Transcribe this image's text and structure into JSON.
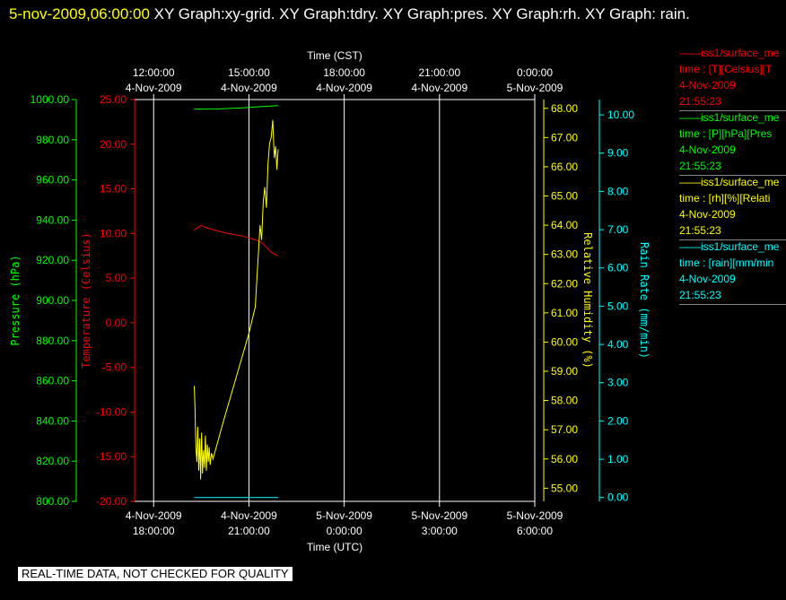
{
  "header": {
    "datetime": "5-nov-2009,06:00:00",
    "titles": "XY Graph:xy-grid.  XY Graph:tdry.  XY Graph:pres.  XY Graph:rh.  XY Graph: rain."
  },
  "footer": {
    "disclaimer": "REAL-TIME DATA, NOT CHECKED FOR QUALITY"
  },
  "colors": {
    "background": "#000000",
    "grid": "#ffffff",
    "pressure": "#00ff00",
    "temperature": "#ff0000",
    "humidity": "#ffff00",
    "rain": "#00ffff"
  },
  "legend": [
    {
      "name": "iss1/surface_me",
      "line2": "time : [T][Celsius][T",
      "date": "4-Nov-2009",
      "time": "21:55:23",
      "color": "#ff0000"
    },
    {
      "name": "iss1/surface_me",
      "line2": "time : [P][hPa][Pres",
      "date": "4-Nov-2009",
      "time": "21:55:23",
      "color": "#00ff00"
    },
    {
      "name": "iss1/surface_me",
      "line2": "time : [rh][%][Relati",
      "date": "4-Nov-2009",
      "time": "21:55:23",
      "color": "#ffff00"
    },
    {
      "name": "iss1/surface_me",
      "line2": "time : [rain][mm/min",
      "date": "4-Nov-2009",
      "time": "21:55:23",
      "color": "#00ffff"
    }
  ],
  "chart_data": {
    "type": "line",
    "grid": true,
    "x_top": {
      "label": "Time (CST)",
      "ticks": [
        {
          "time": "12:00:00",
          "date": "4-Nov-2009",
          "hour_utc": 0
        },
        {
          "time": "15:00:00",
          "date": "4-Nov-2009",
          "hour_utc": 3
        },
        {
          "time": "18:00:00",
          "date": "4-Nov-2009",
          "hour_utc": 6
        },
        {
          "time": "21:00:00",
          "date": "4-Nov-2009",
          "hour_utc": 9
        },
        {
          "time": "0:00:00",
          "date": "5-Nov-2009",
          "hour_utc": 12
        }
      ]
    },
    "x_bottom": {
      "label": "Time (UTC)",
      "ticks": [
        {
          "date": "4-Nov-2009",
          "time": "18:00:00",
          "hour_utc": 0
        },
        {
          "date": "4-Nov-2009",
          "time": "21:00:00",
          "hour_utc": 3
        },
        {
          "date": "5-Nov-2009",
          "time": "0:00:00",
          "hour_utc": 6
        },
        {
          "date": "5-Nov-2009",
          "time": "3:00:00",
          "hour_utc": 9
        },
        {
          "date": "5-Nov-2009",
          "time": "6:00:00",
          "hour_utc": 12
        }
      ],
      "xlim_hours_utc": [
        -0.6,
        12
      ]
    },
    "axes": {
      "pressure": {
        "label": "Pressure (hPa)",
        "ylim": [
          800,
          1000
        ],
        "ticks": [
          "800.00",
          "820.00",
          "840.00",
          "860.00",
          "880.00",
          "900.00",
          "920.00",
          "940.00",
          "960.00",
          "980.00",
          "1000.00"
        ]
      },
      "temperature": {
        "label": "Temperature (Celsius)",
        "ylim": [
          -20,
          25
        ],
        "ticks": [
          "-20.00",
          "-15.00",
          "-10.00",
          "-5.00",
          "0.00",
          "5.00",
          "10.00",
          "15.00",
          "20.00",
          "25.00"
        ]
      },
      "humidity": {
        "label": "Relative Humidity (%)",
        "ylim": [
          54.55,
          68.3
        ],
        "ticks": [
          "55.00",
          "56.00",
          "57.00",
          "58.00",
          "59.00",
          "60.00",
          "61.00",
          "62.00",
          "63.00",
          "64.00",
          "65.00",
          "66.00",
          "67.00",
          "68.00"
        ]
      },
      "rain": {
        "label": "Rain Rate (mm/min)",
        "ylim": [
          -0.1,
          10.4
        ],
        "ticks": [
          "0.00",
          "1.00",
          "2.00",
          "3.00",
          "4.00",
          "5.00",
          "6.00",
          "7.00",
          "8.00",
          "9.00",
          "10.00"
        ]
      }
    },
    "series": [
      {
        "name": "iss1/surface_me [T]",
        "axis": "temperature",
        "color": "#ff0000",
        "x": [
          1.28,
          1.35,
          1.5,
          1.7,
          1.9,
          2.2,
          2.5,
          2.8,
          3.0,
          3.2,
          3.4,
          3.6,
          3.7,
          3.85,
          3.92
        ],
        "y": [
          10.3,
          10.6,
          10.9,
          10.6,
          10.4,
          10.1,
          9.9,
          9.7,
          9.5,
          9.3,
          9.0,
          8.3,
          7.9,
          7.6,
          7.5
        ]
      },
      {
        "name": "iss1/surface_me [P]",
        "axis": "pressure",
        "color": "#00ff00",
        "x": [
          1.28,
          2.0,
          2.8,
          3.5,
          3.92
        ],
        "y": [
          995.2,
          995.3,
          995.9,
          996.6,
          997.0
        ]
      },
      {
        "name": "iss1/surface_me [rh]",
        "axis": "humidity",
        "color": "#ffff00",
        "x": [
          1.28,
          1.3,
          1.33,
          1.36,
          1.39,
          1.42,
          1.45,
          1.48,
          1.51,
          1.54,
          1.57,
          1.6,
          1.63,
          1.66,
          1.69,
          1.72,
          1.75,
          1.78,
          1.82,
          1.87,
          2.2,
          2.6,
          3.0,
          3.2,
          3.35,
          3.4,
          3.45,
          3.5,
          3.55,
          3.6,
          3.65,
          3.7,
          3.75,
          3.8,
          3.84,
          3.88,
          3.92
        ],
        "y": [
          58.5,
          57.8,
          56.4,
          55.9,
          57.1,
          55.6,
          56.7,
          55.3,
          56.9,
          55.5,
          56.3,
          55.7,
          56.8,
          55.6,
          56.5,
          55.9,
          56.4,
          55.8,
          56.2,
          56.0,
          57.3,
          58.8,
          60.3,
          61.2,
          64.0,
          63.5,
          64.8,
          65.3,
          64.6,
          66.1,
          66.8,
          67.0,
          67.6,
          66.3,
          66.7,
          65.9,
          66.6
        ]
      },
      {
        "name": "iss1/surface_me [rain]",
        "axis": "rain",
        "color": "#00ffff",
        "x": [
          1.28,
          3.92
        ],
        "y": [
          0.0,
          0.0
        ]
      }
    ]
  }
}
